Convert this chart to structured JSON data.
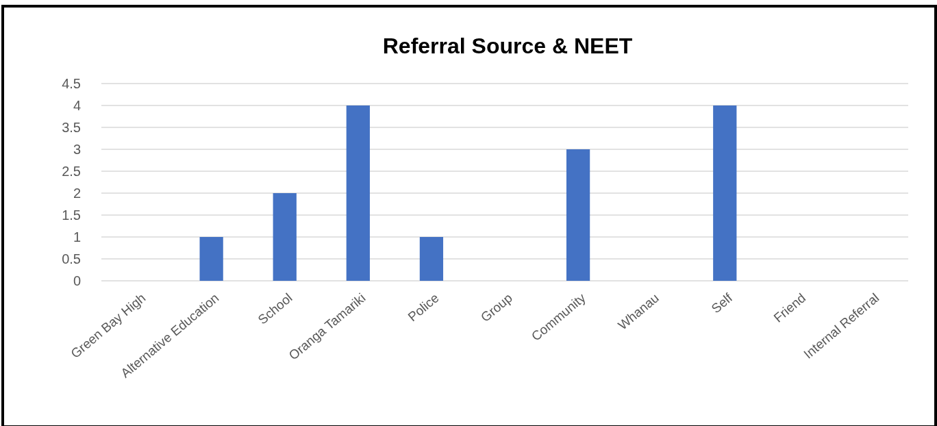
{
  "chart_data": {
    "type": "bar",
    "title": "Referral Source & NEET",
    "categories": [
      "Green Bay High",
      "Alternative Education",
      "School",
      "Oranga Tamariki",
      "Police",
      "Group",
      "Community",
      "Whanau",
      "Self",
      "Friend",
      "Internal Referral"
    ],
    "values": [
      0,
      1,
      2,
      4,
      1,
      0,
      3,
      0,
      4,
      0,
      0
    ],
    "color": "#4472c4",
    "ylim": [
      0,
      4.5
    ],
    "yticks": [
      0,
      0.5,
      1,
      1.5,
      2,
      2.5,
      3,
      3.5,
      4,
      4.5
    ],
    "grid": "y"
  }
}
